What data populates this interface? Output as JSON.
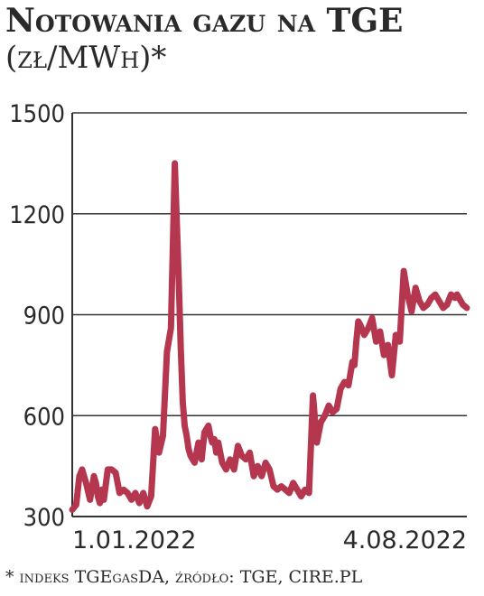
{
  "chart_data": {
    "type": "line",
    "title": "Notowania gazu na TGE",
    "subtitle": "(zł/MWh)*",
    "footnote": "* indeks TGEgasDA, źródło: TGE, CIRE.PL",
    "xlabel": "",
    "ylabel": "",
    "ylim": [
      300,
      1500
    ],
    "yticks": [
      300,
      600,
      900,
      1200,
      1500
    ],
    "grid": true,
    "x_tick_labels": [
      "1.01.2022",
      "4.08.2022"
    ],
    "colors": {
      "line": "#b5364f",
      "grid": "#333333",
      "text": "#2a2a2a"
    },
    "series": [
      {
        "x": [
          0,
          0.01,
          0.018,
          0.025,
          0.035,
          0.045,
          0.055,
          0.06,
          0.065,
          0.07,
          0.075,
          0.08,
          0.09,
          0.1,
          0.11,
          0.12,
          0.13,
          0.14,
          0.15,
          0.16,
          0.17,
          0.18,
          0.19,
          0.2,
          0.21,
          0.22,
          0.23,
          0.24,
          0.25,
          0.26,
          0.27,
          0.275,
          0.28,
          0.285,
          0.29,
          0.295,
          0.3,
          0.31,
          0.32,
          0.328,
          0.335,
          0.34,
          0.345,
          0.35,
          0.355,
          0.36,
          0.365,
          0.37,
          0.38,
          0.39,
          0.4,
          0.41,
          0.42,
          0.43,
          0.44,
          0.45,
          0.46,
          0.47,
          0.48,
          0.49,
          0.5,
          0.51,
          0.52,
          0.53,
          0.54,
          0.55,
          0.56,
          0.57,
          0.58,
          0.59,
          0.6,
          0.61,
          0.62,
          0.63,
          0.64,
          0.65,
          0.66,
          0.67,
          0.68,
          0.69,
          0.7,
          0.71,
          0.715,
          0.72,
          0.725,
          0.73,
          0.74,
          0.75,
          0.76,
          0.77,
          0.78,
          0.79,
          0.8,
          0.81,
          0.82,
          0.83,
          0.84,
          0.85,
          0.86,
          0.87,
          0.88,
          0.89,
          0.9,
          0.91,
          0.92,
          0.93,
          0.94,
          0.95,
          0.96,
          0.97,
          0.975,
          0.98,
          0.985,
          0.99,
          1.0
        ],
        "values": [
          320,
          335,
          420,
          440,
          400,
          350,
          420,
          400,
          360,
          340,
          380,
          350,
          440,
          440,
          430,
          370,
          380,
          370,
          350,
          370,
          340,
          370,
          330,
          360,
          560,
          490,
          540,
          790,
          860,
          1350,
          1000,
          800,
          640,
          570,
          540,
          500,
          480,
          460,
          520,
          470,
          550,
          560,
          570,
          540,
          520,
          530,
          490,
          520,
          460,
          440,
          470,
          440,
          510,
          480,
          470,
          490,
          420,
          450,
          420,
          460,
          440,
          390,
          380,
          390,
          380,
          370,
          400,
          380,
          360,
          380,
          370,
          660,
          520,
          580,
          600,
          630,
          610,
          620,
          680,
          700,
          690,
          760,
          750,
          820,
          880,
          870,
          840,
          860,
          890,
          820,
          850,
          780,
          810,
          720,
          840,
          820,
          1030,
          960,
          910,
          980,
          940,
          920,
          930,
          950,
          960,
          940,
          920,
          930,
          960,
          950,
          960,
          950,
          940,
          930,
          920
        ]
      }
    ]
  }
}
